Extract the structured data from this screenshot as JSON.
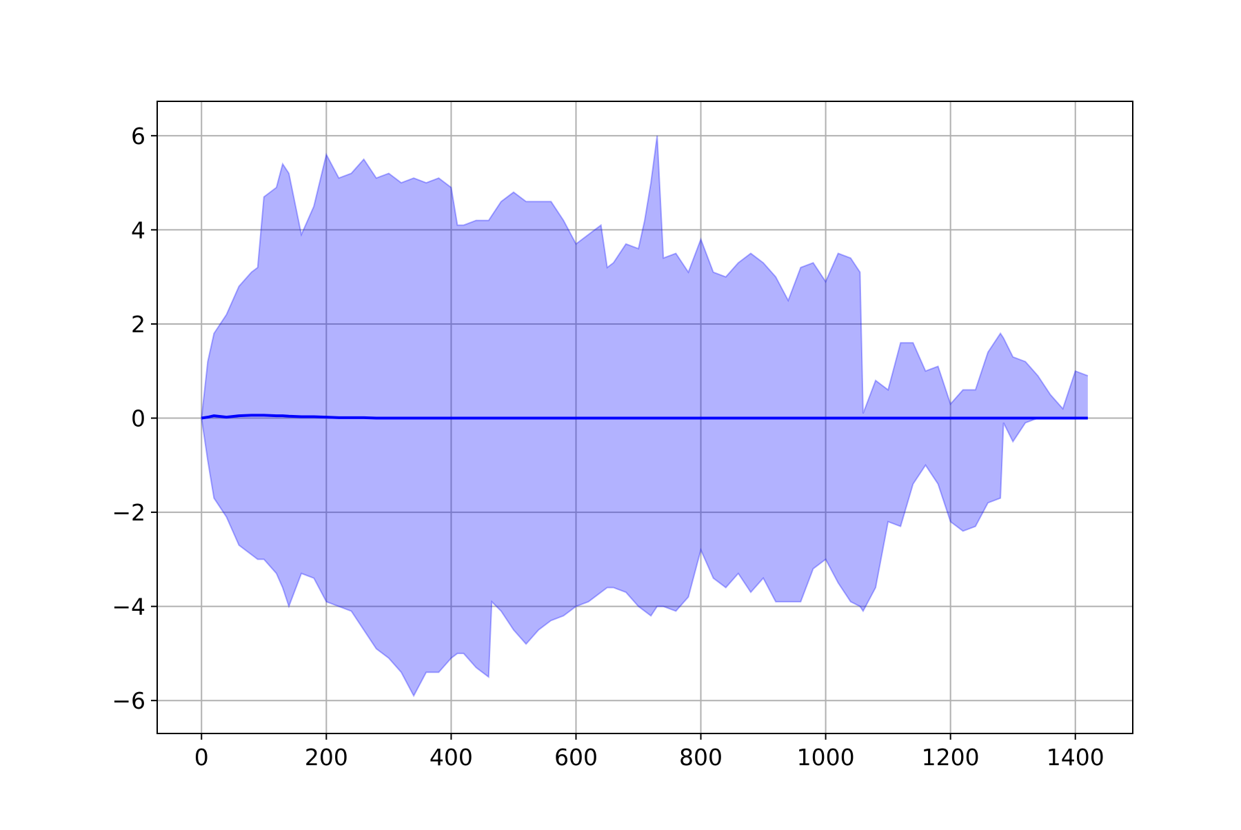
{
  "chart_data": {
    "type": "line",
    "x": [
      0,
      10,
      20,
      40,
      60,
      80,
      90,
      100,
      120,
      130,
      140,
      160,
      180,
      200,
      220,
      240,
      260,
      280,
      300,
      320,
      340,
      360,
      380,
      400,
      410,
      420,
      440,
      460,
      465,
      480,
      500,
      520,
      540,
      560,
      580,
      600,
      620,
      640,
      650,
      660,
      680,
      700,
      710,
      720,
      730,
      740,
      760,
      780,
      800,
      820,
      840,
      860,
      880,
      900,
      920,
      940,
      960,
      980,
      1000,
      1020,
      1040,
      1055,
      1060,
      1080,
      1100,
      1120,
      1140,
      1160,
      1180,
      1200,
      1220,
      1240,
      1260,
      1280,
      1285,
      1300,
      1320,
      1340,
      1360,
      1380,
      1400,
      1420
    ],
    "series": [
      {
        "color": "#0000ff",
        "values": [
          0,
          0.02,
          0.05,
          0.02,
          0.05,
          0.06,
          0.06,
          0.06,
          0.05,
          0.05,
          0.04,
          0.03,
          0.03,
          0.02,
          0.01,
          0.01,
          0.01,
          0,
          0,
          0,
          0,
          0,
          0,
          0,
          0,
          0,
          0,
          0,
          0,
          0,
          0,
          0,
          0,
          0,
          0,
          0,
          0,
          0,
          0,
          0,
          0,
          0,
          0,
          0,
          0,
          0,
          0,
          0,
          0,
          0,
          0,
          0,
          0,
          0,
          0,
          0,
          0,
          0,
          0,
          0,
          0,
          0,
          0,
          0,
          0,
          0,
          0,
          0,
          0,
          0,
          0,
          0,
          0,
          0,
          0,
          0,
          0,
          0,
          0,
          0,
          0,
          0
        ]
      }
    ],
    "band": {
      "color": "#0000ff",
      "opacity": 0.3,
      "upper": [
        0,
        1.2,
        1.8,
        2.2,
        2.8,
        3.1,
        3.2,
        4.7,
        4.9,
        5.4,
        5.2,
        3.9,
        4.5,
        5.6,
        5.1,
        5.2,
        5.5,
        5.1,
        5.2,
        5.0,
        5.1,
        5.0,
        5.1,
        4.9,
        4.1,
        4.1,
        4.2,
        4.2,
        4.3,
        4.6,
        4.8,
        4.6,
        4.6,
        4.6,
        4.2,
        3.7,
        3.9,
        4.1,
        3.2,
        3.3,
        3.7,
        3.6,
        4.2,
        5.0,
        6.0,
        3.4,
        3.5,
        3.1,
        3.8,
        3.1,
        3.0,
        3.3,
        3.5,
        3.3,
        3.0,
        2.5,
        3.2,
        3.3,
        2.9,
        3.5,
        3.4,
        3.1,
        0.1,
        0.8,
        0.6,
        1.6,
        1.6,
        1.0,
        1.1,
        0.3,
        0.6,
        0.6,
        1.4,
        1.8,
        1.7,
        1.3,
        1.2,
        0.9,
        0.5,
        0.2,
        1.0,
        0.9
      ],
      "lower": [
        0,
        -0.9,
        -1.7,
        -2.1,
        -2.7,
        -2.9,
        -3.0,
        -3.0,
        -3.3,
        -3.6,
        -4.0,
        -3.3,
        -3.4,
        -3.9,
        -4.0,
        -4.1,
        -4.5,
        -4.9,
        -5.1,
        -5.4,
        -5.9,
        -5.4,
        -5.4,
        -5.1,
        -5.0,
        -5.0,
        -5.3,
        -5.5,
        -3.9,
        -4.1,
        -4.5,
        -4.8,
        -4.5,
        -4.3,
        -4.2,
        -4.0,
        -3.9,
        -3.7,
        -3.6,
        -3.6,
        -3.7,
        -4.0,
        -4.1,
        -4.2,
        -4.0,
        -4.0,
        -4.1,
        -3.8,
        -2.8,
        -3.4,
        -3.6,
        -3.3,
        -3.7,
        -3.4,
        -3.9,
        -3.9,
        -3.9,
        -3.2,
        -3.0,
        -3.5,
        -3.9,
        -4.0,
        -4.1,
        -3.6,
        -2.2,
        -2.3,
        -1.4,
        -1.0,
        -1.4,
        -2.2,
        -2.4,
        -2.3,
        -1.8,
        -1.7,
        -0.1,
        -0.5,
        -0.1,
        0,
        0,
        0,
        0,
        0
      ]
    },
    "xlim": [
      -71,
      1492
    ],
    "ylim": [
      -6.7,
      6.73
    ],
    "xticks": [
      0,
      200,
      400,
      600,
      800,
      1000,
      1200,
      1400
    ],
    "yticks": [
      {
        "value": -6,
        "label": "−6"
      },
      {
        "value": -4,
        "label": "−4"
      },
      {
        "value": -2,
        "label": "−2"
      },
      0,
      2,
      4,
      6
    ],
    "grid": true
  }
}
